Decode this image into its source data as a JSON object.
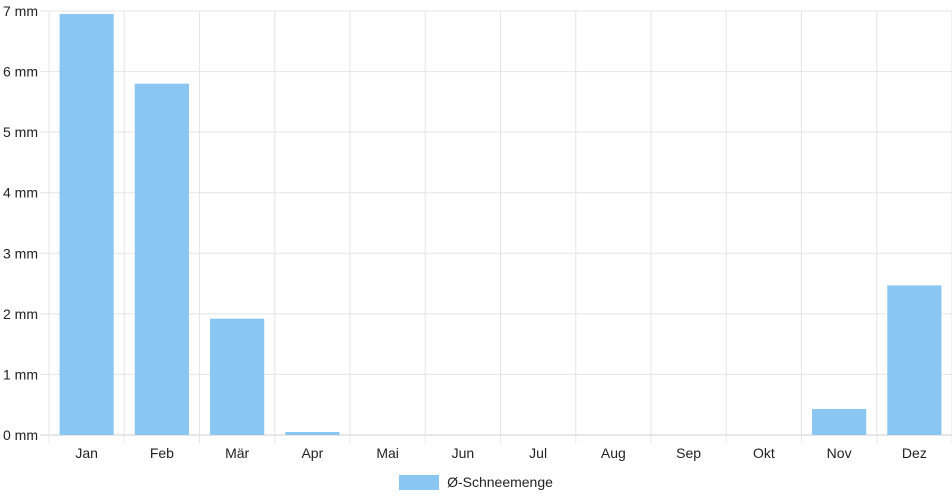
{
  "chart_data": {
    "type": "bar",
    "categories": [
      "Jan",
      "Feb",
      "Mär",
      "Apr",
      "Mai",
      "Jun",
      "Jul",
      "Aug",
      "Sep",
      "Okt",
      "Nov",
      "Dez"
    ],
    "series": [
      {
        "name": "Ø-Schneemenge",
        "values": [
          6.95,
          5.8,
          1.92,
          0.05,
          0,
          0,
          0,
          0,
          0,
          0,
          0.43,
          2.47
        ],
        "color": "#89c6f2"
      }
    ],
    "y_ticks": [
      "0 mm",
      "1 mm",
      "2 mm",
      "3 mm",
      "4 mm",
      "5 mm",
      "6 mm",
      "7 mm"
    ],
    "ylim": [
      0,
      7
    ],
    "grid": true,
    "legend_position": "bottom"
  }
}
